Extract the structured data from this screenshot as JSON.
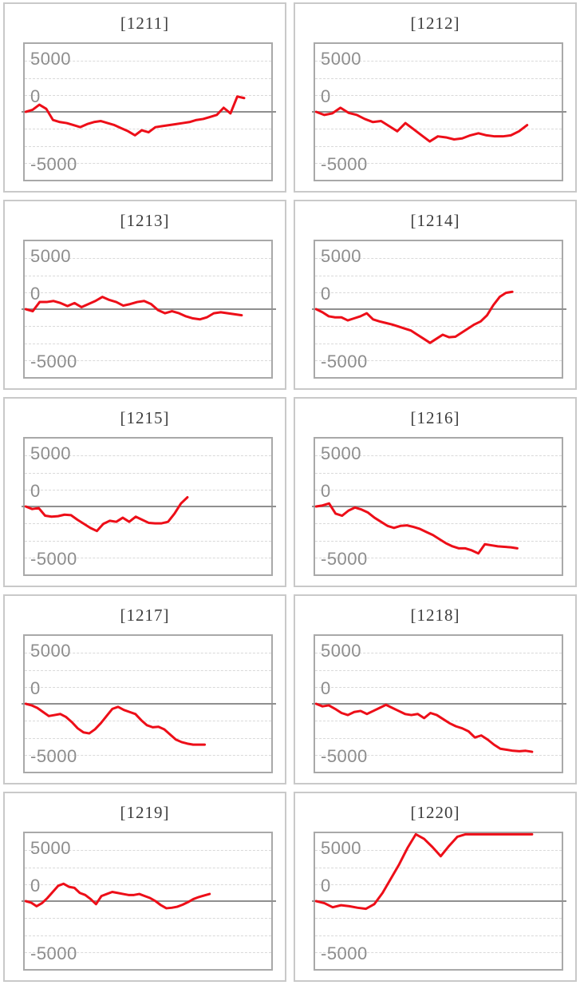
{
  "page": {
    "background": "#ffffff",
    "description": "Grid of 10 per-machine payout line charts"
  },
  "styles": {
    "line_color": "#ed0e18",
    "grid_color": "#d9d9d9",
    "zero_line_color": "#8f8f8f",
    "panel_border_color": "#c9c9c9",
    "plot_border_color": "#a9a9a9",
    "tick_label_color": "#8d8d8d",
    "title_color": "#3d3d3d"
  },
  "axis": {
    "ylim": [
      -6650,
      6650
    ],
    "grid": true,
    "gridline_pcts": [
      12.5,
      25,
      37.5,
      62.5,
      75,
      87.5
    ],
    "ticks": [
      {
        "label": "5000",
        "value": 5000,
        "pos_pct": 11
      },
      {
        "label": "0",
        "value": 0,
        "pos_pct": 39
      },
      {
        "label": "-5000",
        "value": -5000,
        "pos_pct": 89
      }
    ]
  },
  "chart_data": [
    {
      "type": "line",
      "title": "[1211]",
      "machine_id": "1211",
      "xlabel": "",
      "ylabel": "",
      "ylim": [
        -6650,
        6650
      ],
      "legend": false,
      "end_x_pct": 89,
      "values": [
        0,
        200,
        700,
        300,
        -800,
        -1000,
        -1100,
        -1300,
        -1500,
        -1200,
        -1000,
        -900,
        -1100,
        -1300,
        -1600,
        -1900,
        -2300,
        -1800,
        -2000,
        -1500,
        -1400,
        -1300,
        -1200,
        -1100,
        -1000,
        -800,
        -700,
        -500,
        -300,
        400,
        -150,
        1500,
        1350
      ]
    },
    {
      "type": "line",
      "title": "[1212]",
      "machine_id": "1212",
      "xlabel": "",
      "ylabel": "",
      "ylim": [
        -6650,
        6650
      ],
      "legend": false,
      "end_x_pct": 86,
      "values": [
        0,
        -300,
        -150,
        400,
        -100,
        -300,
        -700,
        -1000,
        -900,
        -1400,
        -1900,
        -1100,
        -1700,
        -2300,
        -2900,
        -2400,
        -2500,
        -2700,
        -2600,
        -2300,
        -2100,
        -2300,
        -2400,
        -2400,
        -2300,
        -1900,
        -1300
      ]
    },
    {
      "type": "line",
      "title": "[1213]",
      "machine_id": "1213",
      "xlabel": "",
      "ylabel": "",
      "ylim": [
        -6650,
        6650
      ],
      "legend": false,
      "end_x_pct": 88,
      "values": [
        0,
        -200,
        700,
        700,
        800,
        600,
        300,
        600,
        200,
        500,
        800,
        1200,
        900,
        700,
        350,
        500,
        700,
        800,
        500,
        -100,
        -400,
        -200,
        -400,
        -700,
        -900,
        -1000,
        -800,
        -400,
        -300,
        -400,
        -500,
        -600
      ]
    },
    {
      "type": "line",
      "title": "[1214]",
      "machine_id": "1214",
      "xlabel": "",
      "ylabel": "",
      "ylim": [
        -6650,
        6650
      ],
      "legend": false,
      "end_x_pct": 80,
      "values": [
        0,
        -300,
        -700,
        -800,
        -800,
        -1100,
        -900,
        -700,
        -400,
        -1000,
        -1200,
        -1350,
        -1500,
        -1700,
        -1900,
        -2100,
        -2500,
        -2900,
        -3300,
        -2900,
        -2500,
        -2750,
        -2700,
        -2300,
        -1900,
        -1500,
        -1200,
        -600,
        400,
        1200,
        1600,
        1700
      ]
    },
    {
      "type": "line",
      "title": "[1215]",
      "machine_id": "1215",
      "xlabel": "",
      "ylabel": "",
      "ylim": [
        -6650,
        6650
      ],
      "legend": false,
      "end_x_pct": 66,
      "values": [
        0,
        -250,
        -150,
        -900,
        -1000,
        -950,
        -800,
        -850,
        -1300,
        -1700,
        -2100,
        -2400,
        -1700,
        -1400,
        -1500,
        -1100,
        -1500,
        -1000,
        -1300,
        -1600,
        -1650,
        -1650,
        -1500,
        -700,
        300,
        900
      ]
    },
    {
      "type": "line",
      "title": "[1216]",
      "machine_id": "1216",
      "xlabel": "",
      "ylabel": "",
      "ylim": [
        -6650,
        6650
      ],
      "legend": false,
      "end_x_pct": 82,
      "values": [
        0,
        100,
        300,
        -700,
        -900,
        -400,
        -100,
        -300,
        -600,
        -1100,
        -1500,
        -1900,
        -2100,
        -1900,
        -1850,
        -2000,
        -2200,
        -2500,
        -2800,
        -3200,
        -3600,
        -3900,
        -4100,
        -4100,
        -4300,
        -4600,
        -3700,
        -3800,
        -3900,
        -3950,
        -4000,
        -4100
      ]
    },
    {
      "type": "line",
      "title": "[1217]",
      "machine_id": "1217",
      "xlabel": "",
      "ylabel": "",
      "ylim": [
        -6650,
        6650
      ],
      "legend": false,
      "end_x_pct": 73,
      "values": [
        0,
        -150,
        -400,
        -800,
        -1200,
        -1100,
        -1000,
        -1300,
        -1800,
        -2400,
        -2800,
        -2900,
        -2500,
        -1900,
        -1200,
        -500,
        -300,
        -600,
        -800,
        -1000,
        -1600,
        -2100,
        -2300,
        -2250,
        -2500,
        -3000,
        -3500,
        -3750,
        -3900,
        -4000,
        -4000,
        -4000
      ]
    },
    {
      "type": "line",
      "title": "[1218]",
      "machine_id": "1218",
      "xlabel": "",
      "ylabel": "",
      "ylim": [
        -6650,
        6650
      ],
      "legend": false,
      "end_x_pct": 88,
      "values": [
        0,
        -250,
        -150,
        -500,
        -900,
        -1100,
        -800,
        -700,
        -1000,
        -700,
        -400,
        -100,
        -400,
        -700,
        -1000,
        -1100,
        -1000,
        -1400,
        -900,
        -1100,
        -1500,
        -1900,
        -2200,
        -2400,
        -2700,
        -3300,
        -3100,
        -3500,
        -4000,
        -4400,
        -4500,
        -4600,
        -4650,
        -4600,
        -4700
      ]
    },
    {
      "type": "line",
      "title": "[1219]",
      "machine_id": "1219",
      "xlabel": "",
      "ylabel": "",
      "ylim": [
        -6650,
        6650
      ],
      "legend": false,
      "end_x_pct": 75,
      "values": [
        0,
        -150,
        -500,
        -200,
        300,
        900,
        1500,
        1700,
        1400,
        1300,
        800,
        600,
        200,
        -300,
        500,
        700,
        900,
        800,
        700,
        600,
        600,
        700,
        500,
        300,
        0,
        -400,
        -700,
        -650,
        -550,
        -350,
        -100,
        200,
        400,
        550,
        700
      ]
    },
    {
      "type": "line",
      "title": "[1220]",
      "machine_id": "1220",
      "xlabel": "",
      "ylabel": "",
      "ylim": [
        -6650,
        6650
      ],
      "legend": false,
      "end_x_pct": 88,
      "values": [
        0,
        -200,
        -600,
        -400,
        -500,
        -650,
        -750,
        -300,
        800,
        2200,
        3600,
        5200,
        6600,
        6100,
        5300,
        4400,
        5400,
        6300,
        6600,
        6600,
        6600,
        6600,
        6600,
        6600,
        6600,
        6600,
        6600
      ]
    }
  ]
}
